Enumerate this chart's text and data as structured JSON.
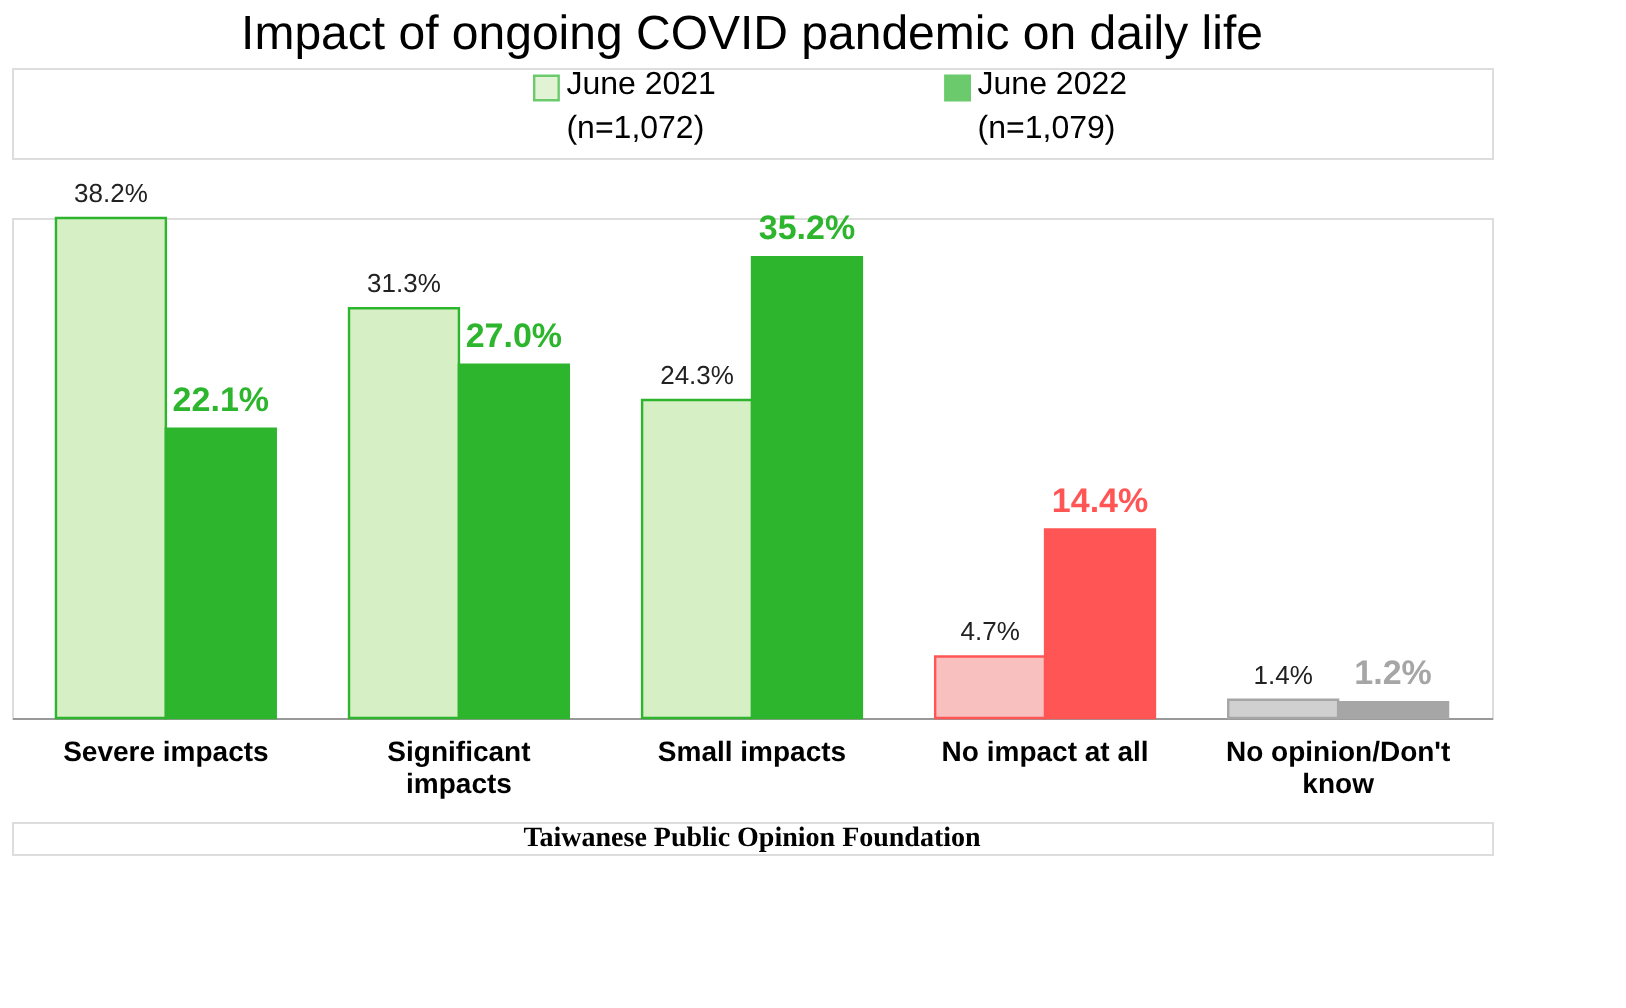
{
  "chart_data": {
    "type": "bar",
    "title": "Impact of ongoing COVID pandemic on daily life",
    "categories": [
      "Severe impacts",
      "Significant impacts",
      "Small impacts",
      "No impact at all",
      "No opinion/Don't know"
    ],
    "series": [
      {
        "name": "June 2021\n(n=1,072)",
        "color": "#d6efc4",
        "colors": [
          "#d6efc4",
          "#d6efc4",
          "#d6efc4",
          "#f9c0c0",
          "#d0d0d0"
        ],
        "values": [
          38.2,
          31.3,
          24.3,
          4.7,
          1.4
        ],
        "value_labels": [
          "38.2%",
          "31.3%",
          "24.3%",
          "4.7%",
          "1.4%"
        ]
      },
      {
        "name": "June 2022\n(n=1,079)",
        "color": "#2db52d",
        "colors": [
          "#2db52d",
          "#2db52d",
          "#2db52d",
          "#ff5555",
          "#a6a6a6"
        ],
        "values": [
          22.1,
          27.0,
          35.2,
          14.4,
          1.2
        ],
        "value_labels": [
          "22.1%",
          "27.0%",
          "35.2%",
          "14.4%",
          "1.2%"
        ]
      }
    ],
    "legend": "top",
    "annotations": [
      "Taiwanese Public Opinion Foundation"
    ]
  }
}
